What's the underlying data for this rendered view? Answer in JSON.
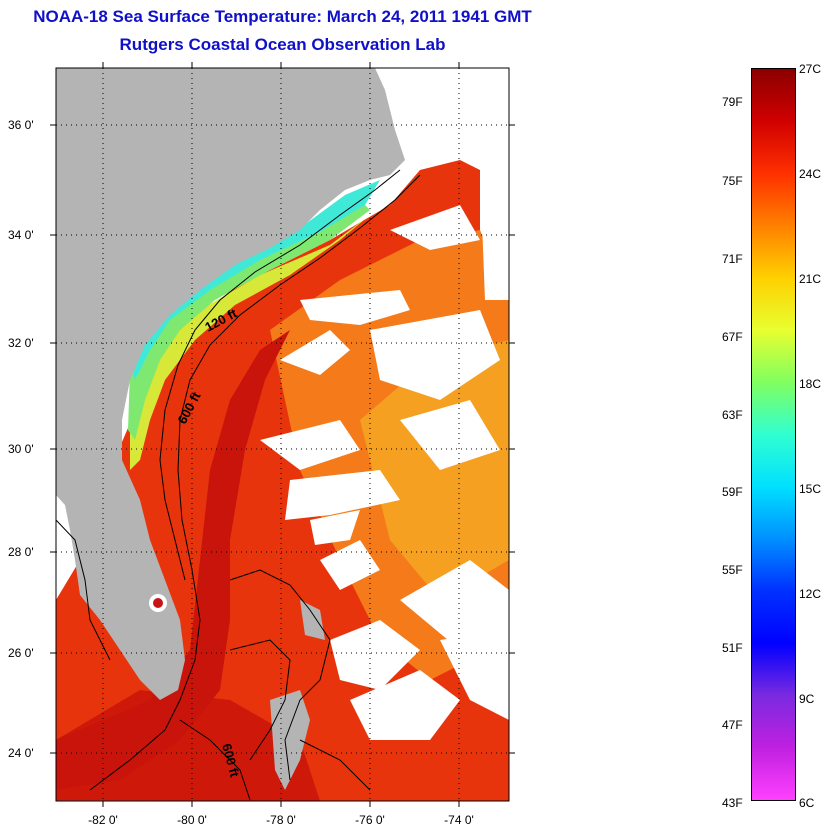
{
  "title": {
    "line1": "NOAA-18 Sea Surface Temperature:  March 24, 2011 1941 GMT",
    "line2": "Rutgers Coastal Ocean Observation Lab"
  },
  "colors": {
    "title": "#1010c8",
    "land": "#b4b4b4",
    "cloud": "#ffffff",
    "warm_water": "#e8280a",
    "shelf_water": "#5cd8a8"
  },
  "axes": {
    "latitude_labels": [
      "36 0'",
      "34 0'",
      "32 0'",
      "30 0'",
      "28 0'",
      "26 0'",
      "24 0'"
    ],
    "longitude_labels": [
      "-82 0'",
      "-80 0'",
      "-78 0'",
      "-76 0'",
      "-74 0'"
    ]
  },
  "contours": {
    "shelf_120": "120 ft",
    "slope_600": "600 ft",
    "south_600": "600 ft"
  },
  "colorbar": {
    "fahrenheit_labels": [
      "79F",
      "75F",
      "71F",
      "67F",
      "63F",
      "59F",
      "55F",
      "51F",
      "47F",
      "43F"
    ],
    "celsius_labels": [
      "27C",
      "24C",
      "21C",
      "18C",
      "15C",
      "12C",
      "9C",
      "6C"
    ],
    "range_celsius": [
      6,
      27
    ],
    "gradient_colors": [
      "#8b0000",
      "#d00000",
      "#ff3000",
      "#ff8000",
      "#ffd000",
      "#e8ff30",
      "#80ff60",
      "#30ffd0",
      "#00e0ff",
      "#0090ff",
      "#0030ff",
      "#0000ff",
      "#7a2ae0",
      "#c020e0",
      "#ff40ff"
    ]
  }
}
